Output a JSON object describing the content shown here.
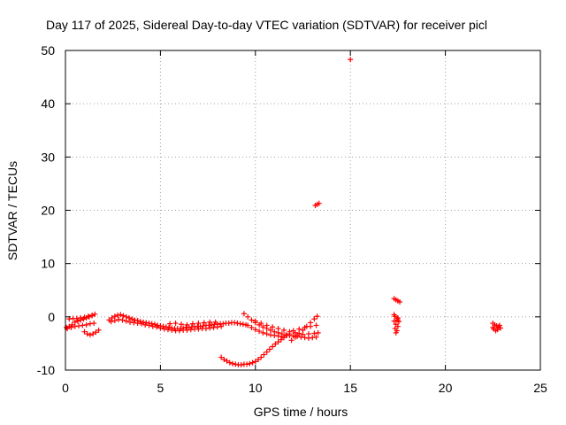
{
  "chart_data": {
    "type": "scatter",
    "title": "Day 117 of 2025, Sidereal Day-to-day VTEC variation (SDTVAR) for receiver picl",
    "xlabel": "GPS time / hours",
    "ylabel": "SDTVAR / TECUs",
    "xlim": [
      0,
      25
    ],
    "ylim": [
      -10,
      50
    ],
    "xticks": [
      "0",
      "5",
      "10",
      "15",
      "20",
      "25"
    ],
    "yticks": [
      "-10",
      "0",
      "10",
      "20",
      "30",
      "40",
      "50"
    ],
    "grid": true,
    "marker_color": "#ff0000",
    "series": [
      {
        "name": "SDTVAR",
        "points": [
          [
            0.05,
            -2.0
          ],
          [
            0.2,
            -1.8
          ],
          [
            0.35,
            -1.5
          ],
          [
            0.5,
            -1.0
          ],
          [
            0.65,
            -0.8
          ],
          [
            0.8,
            -0.6
          ],
          [
            0.95,
            -0.4
          ],
          [
            1.1,
            -0.2
          ],
          [
            1.25,
            0.0
          ],
          [
            1.4,
            0.2
          ],
          [
            1.55,
            0.5
          ],
          [
            0.1,
            -2.2
          ],
          [
            0.3,
            -2.0
          ],
          [
            0.5,
            -1.8
          ],
          [
            0.7,
            -1.7
          ],
          [
            0.9,
            -1.6
          ],
          [
            1.1,
            -1.5
          ],
          [
            1.3,
            -1.3
          ],
          [
            1.5,
            -1.2
          ],
          [
            0.2,
            -0.4
          ],
          [
            0.4,
            -0.3
          ],
          [
            0.6,
            -0.3
          ],
          [
            0.8,
            -0.2
          ],
          [
            1.0,
            -0.1
          ],
          [
            1.2,
            0.1
          ],
          [
            1.4,
            0.3
          ],
          [
            1.0,
            -2.8
          ],
          [
            1.15,
            -3.2
          ],
          [
            1.3,
            -3.4
          ],
          [
            1.45,
            -3.2
          ],
          [
            1.6,
            -2.9
          ],
          [
            1.75,
            -2.5
          ],
          [
            2.3,
            -0.6
          ],
          [
            2.45,
            -0.2
          ],
          [
            2.6,
            0.1
          ],
          [
            2.75,
            0.3
          ],
          [
            2.9,
            0.4
          ],
          [
            3.05,
            0.2
          ],
          [
            3.2,
            0.0
          ],
          [
            3.35,
            -0.2
          ],
          [
            3.5,
            -0.4
          ],
          [
            3.65,
            -0.6
          ],
          [
            3.8,
            -0.7
          ],
          [
            3.95,
            -0.9
          ],
          [
            4.1,
            -1.0
          ],
          [
            4.25,
            -1.1
          ],
          [
            4.4,
            -1.2
          ],
          [
            4.55,
            -1.3
          ],
          [
            4.7,
            -1.4
          ],
          [
            4.85,
            -1.6
          ],
          [
            5.0,
            -1.7
          ],
          [
            5.15,
            -1.8
          ],
          [
            5.3,
            -1.9
          ],
          [
            5.45,
            -2.0
          ],
          [
            5.6,
            -2.1
          ],
          [
            5.75,
            -2.2
          ],
          [
            5.9,
            -2.2
          ],
          [
            6.05,
            -2.2
          ],
          [
            6.2,
            -2.1
          ],
          [
            6.35,
            -2.0
          ],
          [
            6.5,
            -2.0
          ],
          [
            6.65,
            -1.9
          ],
          [
            6.8,
            -1.9
          ],
          [
            6.95,
            -1.8
          ],
          [
            7.1,
            -1.8
          ],
          [
            7.25,
            -1.7
          ],
          [
            7.4,
            -1.6
          ],
          [
            7.55,
            -1.6
          ],
          [
            7.7,
            -1.5
          ],
          [
            7.85,
            -1.4
          ],
          [
            8.0,
            -1.4
          ],
          [
            8.15,
            -1.3
          ],
          [
            8.3,
            -1.3
          ],
          [
            8.45,
            -1.2
          ],
          [
            8.6,
            -1.2
          ],
          [
            8.75,
            -1.1
          ],
          [
            8.9,
            -1.1
          ],
          [
            9.05,
            -1.2
          ],
          [
            9.2,
            -1.3
          ],
          [
            9.35,
            -1.4
          ],
          [
            9.5,
            -1.5
          ],
          [
            2.4,
            -0.9
          ],
          [
            2.6,
            -0.7
          ],
          [
            2.8,
            -0.5
          ],
          [
            3.0,
            -0.6
          ],
          [
            3.2,
            -0.8
          ],
          [
            3.4,
            -1.0
          ],
          [
            3.6,
            -1.1
          ],
          [
            3.8,
            -1.2
          ],
          [
            4.0,
            -1.3
          ],
          [
            4.2,
            -1.5
          ],
          [
            4.4,
            -1.6
          ],
          [
            4.6,
            -1.8
          ],
          [
            4.8,
            -1.9
          ],
          [
            5.0,
            -2.1
          ],
          [
            5.2,
            -2.3
          ],
          [
            5.4,
            -2.4
          ],
          [
            5.6,
            -2.5
          ],
          [
            5.8,
            -2.6
          ],
          [
            6.0,
            -2.6
          ],
          [
            6.2,
            -2.5
          ],
          [
            6.4,
            -2.5
          ],
          [
            6.6,
            -2.4
          ],
          [
            6.8,
            -2.3
          ],
          [
            7.0,
            -2.3
          ],
          [
            7.2,
            -2.2
          ],
          [
            7.4,
            -2.2
          ],
          [
            7.6,
            -2.1
          ],
          [
            7.8,
            -2.0
          ],
          [
            8.0,
            -1.9
          ],
          [
            8.2,
            -1.8
          ],
          [
            5.5,
            -1.3
          ],
          [
            5.8,
            -1.2
          ],
          [
            6.1,
            -1.4
          ],
          [
            6.4,
            -1.5
          ],
          [
            6.7,
            -1.3
          ],
          [
            7.0,
            -1.2
          ],
          [
            7.3,
            -1.1
          ],
          [
            7.6,
            -1.0
          ],
          [
            7.9,
            -1.0
          ],
          [
            8.2,
            -7.6
          ],
          [
            8.35,
            -8.0
          ],
          [
            8.5,
            -8.3
          ],
          [
            8.65,
            -8.6
          ],
          [
            8.8,
            -8.8
          ],
          [
            8.95,
            -8.9
          ],
          [
            9.1,
            -9.0
          ],
          [
            9.25,
            -9.0
          ],
          [
            9.4,
            -8.9
          ],
          [
            9.55,
            -8.9
          ],
          [
            9.7,
            -8.8
          ],
          [
            9.85,
            -8.6
          ],
          [
            10.0,
            -8.4
          ],
          [
            10.15,
            -8.0
          ],
          [
            10.3,
            -7.6
          ],
          [
            10.45,
            -7.1
          ],
          [
            10.6,
            -6.6
          ],
          [
            10.75,
            -6.1
          ],
          [
            10.9,
            -5.6
          ],
          [
            11.05,
            -5.1
          ],
          [
            11.2,
            -4.7
          ],
          [
            11.35,
            -4.3
          ],
          [
            11.5,
            -3.9
          ],
          [
            11.65,
            -3.5
          ],
          [
            11.8,
            -3.2
          ],
          [
            9.4,
            0.6
          ],
          [
            9.6,
            0.0
          ],
          [
            9.8,
            -0.6
          ],
          [
            10.0,
            -1.1
          ],
          [
            10.2,
            -1.5
          ],
          [
            10.4,
            -1.9
          ],
          [
            10.6,
            -2.2
          ],
          [
            10.8,
            -2.5
          ],
          [
            11.0,
            -2.8
          ],
          [
            11.2,
            -3.0
          ],
          [
            11.4,
            -3.2
          ],
          [
            11.6,
            -3.4
          ],
          [
            11.8,
            -3.5
          ],
          [
            12.0,
            -3.6
          ],
          [
            12.2,
            -3.7
          ],
          [
            12.4,
            -3.8
          ],
          [
            12.6,
            -3.9
          ],
          [
            12.8,
            -4.0
          ],
          [
            13.0,
            -3.9
          ],
          [
            13.2,
            -3.8
          ],
          [
            9.6,
            -1.6
          ],
          [
            9.8,
            -2.0
          ],
          [
            10.0,
            -2.4
          ],
          [
            10.2,
            -2.7
          ],
          [
            10.4,
            -3.0
          ],
          [
            10.6,
            -3.2
          ],
          [
            10.8,
            -3.4
          ],
          [
            11.0,
            -3.5
          ],
          [
            11.2,
            -3.6
          ],
          [
            11.4,
            -3.7
          ],
          [
            10.0,
            -0.8
          ],
          [
            10.3,
            -1.2
          ],
          [
            10.6,
            -1.6
          ],
          [
            10.9,
            -1.9
          ],
          [
            11.2,
            -2.2
          ],
          [
            11.5,
            -2.5
          ],
          [
            11.8,
            -2.8
          ],
          [
            12.1,
            -3.0
          ],
          [
            11.9,
            -4.4
          ],
          [
            12.1,
            -3.8
          ],
          [
            12.3,
            -3.1
          ],
          [
            12.5,
            -2.5
          ],
          [
            12.7,
            -1.8
          ],
          [
            12.9,
            -1.1
          ],
          [
            13.1,
            -0.4
          ],
          [
            13.25,
            0.1
          ],
          [
            12.0,
            -2.6
          ],
          [
            12.3,
            -2.3
          ],
          [
            12.6,
            -2.0
          ],
          [
            12.9,
            -1.8
          ],
          [
            13.2,
            -1.6
          ],
          [
            12.2,
            -3.4
          ],
          [
            12.5,
            -3.3
          ],
          [
            12.8,
            -3.2
          ],
          [
            13.1,
            -3.1
          ],
          [
            13.3,
            -3.0
          ],
          [
            13.15,
            20.9
          ],
          [
            13.25,
            21.1
          ],
          [
            13.35,
            21.3
          ],
          [
            15.0,
            48.3
          ],
          [
            17.3,
            3.4
          ],
          [
            17.4,
            3.2
          ],
          [
            17.5,
            3.0
          ],
          [
            17.6,
            2.8
          ],
          [
            17.3,
            0.4
          ],
          [
            17.35,
            0.1
          ],
          [
            17.45,
            -0.3
          ],
          [
            17.5,
            -0.6
          ],
          [
            17.55,
            -0.9
          ],
          [
            17.4,
            -1.4
          ],
          [
            17.5,
            -1.8
          ],
          [
            17.35,
            -2.2
          ],
          [
            17.45,
            -2.6
          ],
          [
            17.4,
            -3.0
          ],
          [
            17.5,
            -0.2
          ],
          [
            17.3,
            -0.8
          ],
          [
            22.5,
            -1.2
          ],
          [
            22.6,
            -1.5
          ],
          [
            22.7,
            -1.7
          ],
          [
            22.8,
            -1.9
          ],
          [
            22.9,
            -2.1
          ],
          [
            22.55,
            -2.3
          ],
          [
            22.65,
            -2.6
          ],
          [
            22.75,
            -2.4
          ],
          [
            22.85,
            -1.6
          ],
          [
            22.5,
            -2.0
          ]
        ]
      }
    ]
  }
}
